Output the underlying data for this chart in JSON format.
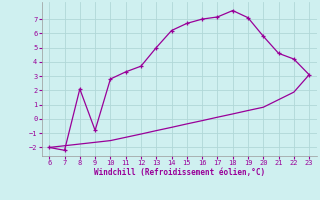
{
  "upper_x": [
    6,
    7,
    8,
    9,
    10,
    11,
    12,
    13,
    14,
    15,
    16,
    17,
    18,
    19,
    20,
    21,
    22,
    23
  ],
  "upper_y": [
    -2.0,
    -2.2,
    2.1,
    -0.8,
    2.8,
    3.3,
    3.7,
    5.0,
    6.2,
    6.7,
    7.0,
    7.15,
    7.6,
    7.1,
    5.8,
    4.6,
    4.2,
    3.1
  ],
  "lower_x": [
    6,
    7,
    8,
    9,
    10,
    11,
    12,
    13,
    14,
    15,
    16,
    17,
    18,
    19,
    20,
    21,
    22,
    23
  ],
  "lower_y": [
    -2.0,
    -1.88,
    -1.76,
    -1.64,
    -1.52,
    -1.29,
    -1.06,
    -0.82,
    -0.59,
    -0.35,
    -0.12,
    0.12,
    0.35,
    0.59,
    0.82,
    1.35,
    1.88,
    3.1
  ],
  "line_color": "#990099",
  "bg_color": "#cff0f0",
  "grid_color": "#b0d8d8",
  "xlabel": "Windchill (Refroidissement éolien,°C)",
  "xlim": [
    5.5,
    23.5
  ],
  "ylim": [
    -2.6,
    8.2
  ],
  "yticks": [
    -2,
    -1,
    0,
    1,
    2,
    3,
    4,
    5,
    6,
    7
  ],
  "xticks": [
    6,
    7,
    8,
    9,
    10,
    11,
    12,
    13,
    14,
    15,
    16,
    17,
    18,
    19,
    20,
    21,
    22,
    23
  ],
  "figsize": [
    3.2,
    2.0
  ],
  "dpi": 100
}
